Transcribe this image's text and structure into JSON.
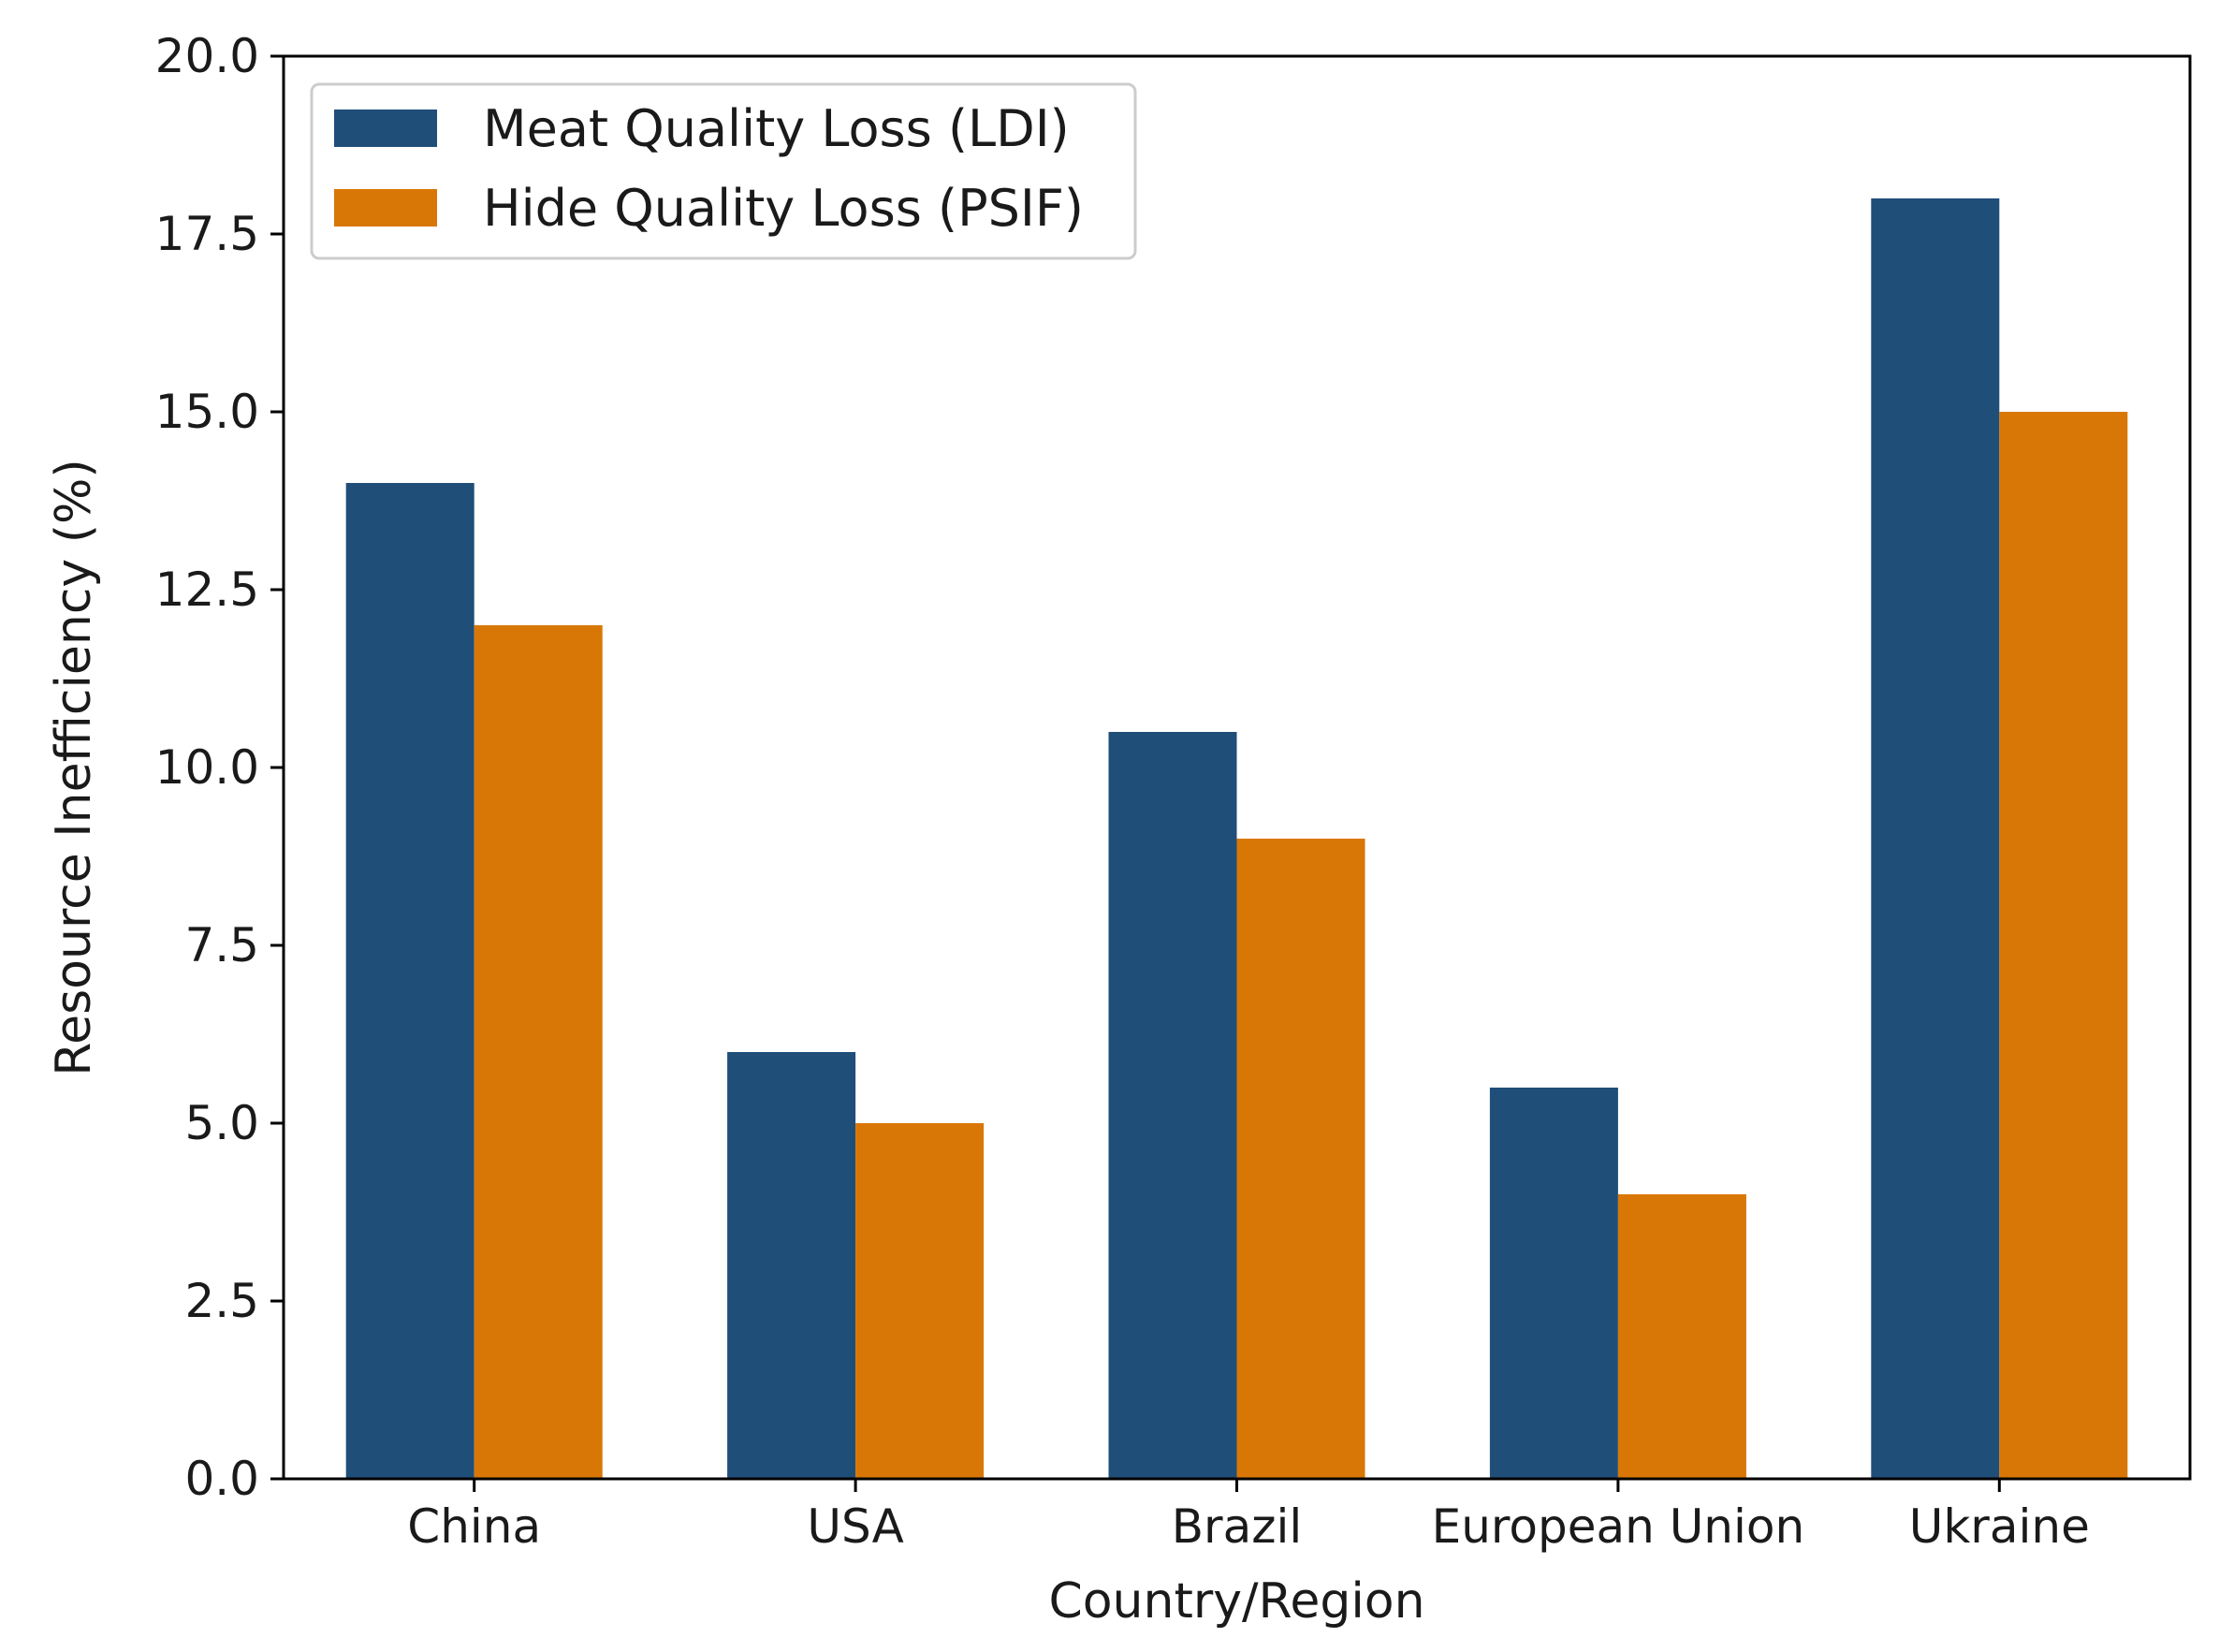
{
  "chart_data": {
    "type": "bar",
    "title": "",
    "xlabel": "Country/Region",
    "ylabel": "Resource Inefficiency (%)",
    "ylim": [
      0,
      20
    ],
    "yticks": [
      "0.0",
      "2.5",
      "5.0",
      "7.5",
      "10.0",
      "12.5",
      "15.0",
      "17.5",
      "20.0"
    ],
    "categories": [
      "China",
      "USA",
      "Brazil",
      "European Union",
      "Ukraine"
    ],
    "series": [
      {
        "name": "Meat Quality Loss (LDI)",
        "values": [
          14.0,
          6.0,
          10.5,
          5.5,
          18.0
        ],
        "color": "#1f4e79"
      },
      {
        "name": "Hide Quality Loss (PSIF)",
        "values": [
          12.0,
          5.0,
          9.0,
          4.0,
          15.0
        ],
        "color": "#d97706"
      }
    ],
    "grid": false,
    "legend_position": "top-left"
  }
}
